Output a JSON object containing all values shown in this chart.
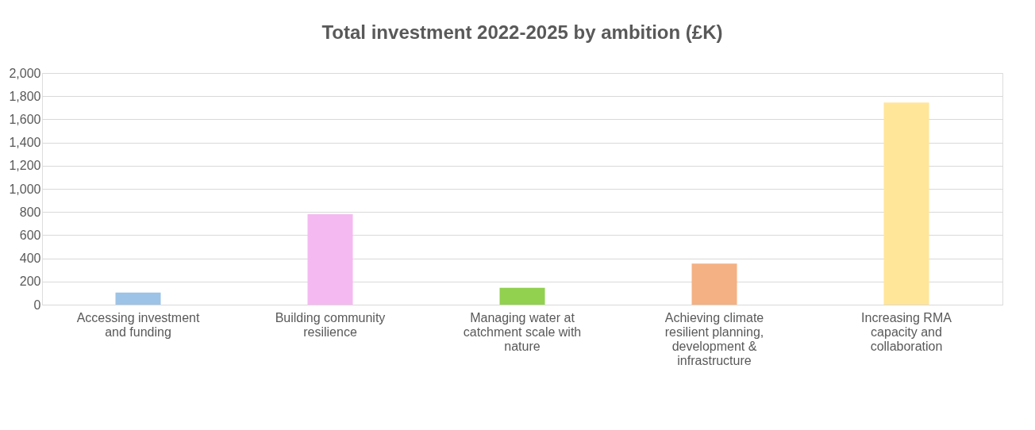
{
  "chart_data": {
    "type": "bar",
    "title": "Total investment 2022-2025 by ambition (£K)",
    "categories": [
      "Accessing investment and funding",
      "Building community resilience",
      "Managing water at catchment scale with nature",
      "Achieving climate resilient planning, development & infrastructure",
      "Increasing RMA capacity and collaboration"
    ],
    "values": [
      105,
      780,
      145,
      355,
      1745
    ],
    "colors": [
      "#9dc3e6",
      "#f4b9f0",
      "#92d050",
      "#f4b183",
      "#ffe699"
    ],
    "ylim": [
      0,
      2000
    ],
    "yticks": [
      {
        "value": 0,
        "label": "0"
      },
      {
        "value": 200,
        "label": "200"
      },
      {
        "value": 400,
        "label": "400"
      },
      {
        "value": 600,
        "label": "600"
      },
      {
        "value": 800,
        "label": "800"
      },
      {
        "value": 1000,
        "label": "1,000"
      },
      {
        "value": 1200,
        "label": "1,200"
      },
      {
        "value": 1400,
        "label": "1,400"
      },
      {
        "value": 1600,
        "label": "1,600"
      },
      {
        "value": 1800,
        "label": "1,800"
      },
      {
        "value": 2000,
        "label": "2,000"
      }
    ],
    "grid": "y"
  }
}
